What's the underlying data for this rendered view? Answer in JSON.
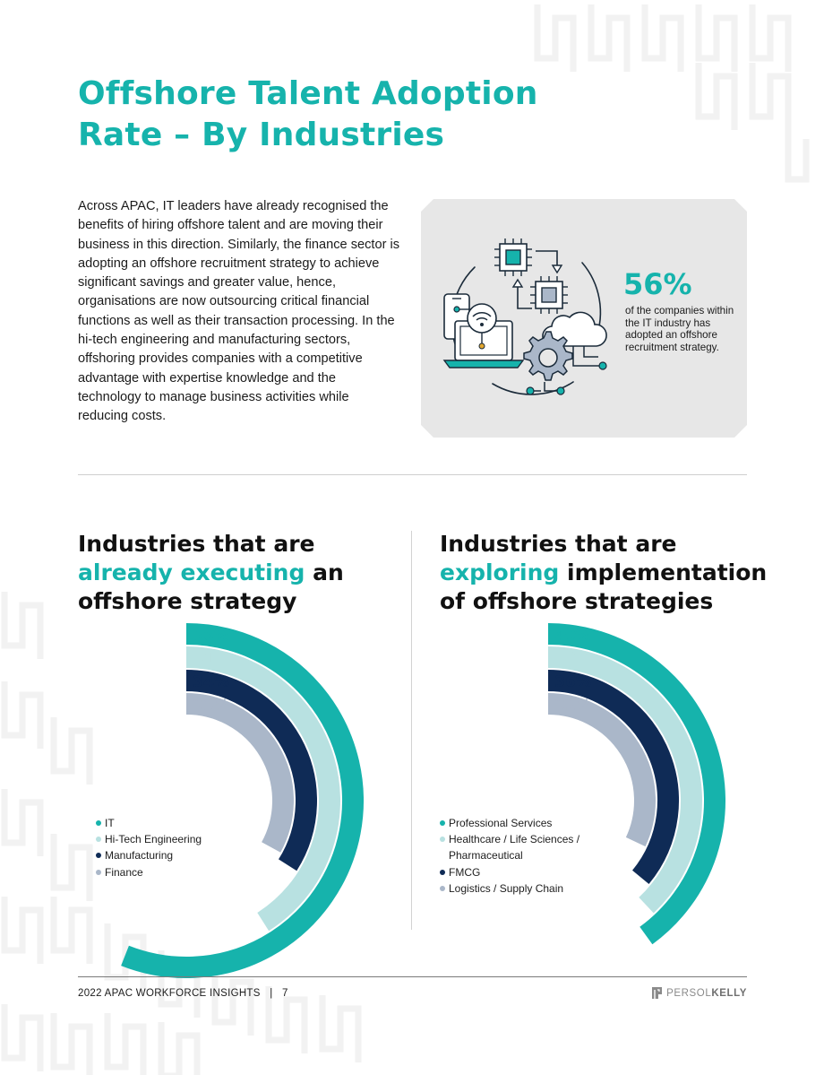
{
  "page": {
    "title_line1": "Offshore Talent Adoption",
    "title_line2": "Rate – By Industries",
    "intro": "Across APAC, IT leaders have already recognised the benefits of hiring offshore talent and are moving their business in this direction. Similarly, the finance sector is adopting an offshore recruitment strategy to achieve significant savings and greater value, hence, organisations are now outsourcing critical financial functions as well as their transaction processing. In the hi-tech engineering and manufacturing sectors, offshoring provides companies with a competitive advantage with expertise knowledge and the technology to manage business activities while reducing costs."
  },
  "stat": {
    "value": "56%",
    "description": "of the companies within the IT industry has adopted an offshore recruitment strategy."
  },
  "sections": {
    "left": {
      "title_pre": "Industries that are",
      "title_highlight": "already executing",
      "title_mid": "an",
      "title_post": "offshore strategy"
    },
    "right": {
      "title_pre": "Industries that are",
      "title_highlight": "exploring",
      "title_mid": "implementation",
      "title_post": "of offshore strategies"
    }
  },
  "colors": {
    "teal": "#16b3ac",
    "light_teal": "#b8e1e1",
    "navy": "#0f2b56",
    "grey_blue": "#aab7c9",
    "panel_bg": "#e7e7e7",
    "pattern": "#f1f1f1"
  },
  "icons": [
    "microchip-icon",
    "laptop-icon",
    "smartphone-icon",
    "wifi-icon",
    "gear-icon",
    "cloud-icon",
    "circuit-icon"
  ],
  "chart_data": [
    {
      "type": "radial-bar",
      "series": [
        {
          "name": "IT",
          "value": 56,
          "label": "56%",
          "color": "#16b3ac"
        },
        {
          "name": "Hi-Tech Engineering",
          "value": 41,
          "label": "41%",
          "color": "#b8e1e1"
        },
        {
          "name": "Manufacturing",
          "value": 34,
          "label": "34%",
          "color": "#0f2b56"
        },
        {
          "name": "Finance",
          "value": 33,
          "label": "33%",
          "color": "#aab7c9"
        }
      ]
    },
    {
      "type": "radial-bar",
      "series": [
        {
          "name": "Professional Services",
          "value": 40,
          "label": "40%",
          "color": "#16b3ac"
        },
        {
          "name": "Healthcare / Life Sciences / Pharmaceutical",
          "value": 38,
          "label": "38%",
          "color": "#b8e1e1"
        },
        {
          "name": "FMCG",
          "value": 36,
          "label": "36%",
          "color": "#0f2b56"
        },
        {
          "name": "Logistics / Supply Chain",
          "value": 32,
          "label": "32%",
          "color": "#aab7c9"
        }
      ]
    }
  ],
  "footer": {
    "report": "2022 APAC WORKFORCE INSIGHTS",
    "separator": "|",
    "page_number": "7",
    "brand_light": "PERSOL",
    "brand_bold": "KELLY"
  }
}
